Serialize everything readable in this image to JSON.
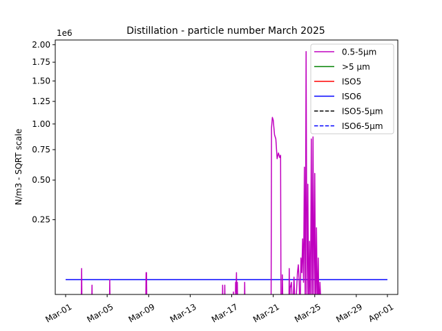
{
  "chart_data": {
    "type": "line",
    "title": "Distillation - particle number March 2025",
    "ylabel": "N/m3 - SQRT scale",
    "xlabel": "",
    "y_offset_text": "1e6",
    "y_scale": "sqrt",
    "ylim": [
      0.012,
      2.07
    ],
    "y_ticks": [
      0.25,
      0.5,
      0.75,
      1.0,
      1.25,
      1.5,
      1.75,
      2.0
    ],
    "y_tick_labels": [
      "0.25",
      "0.50",
      "0.75",
      "1.00",
      "1.25",
      "1.50",
      "1.75",
      "2.00"
    ],
    "xlim": [
      "2025-02-28",
      "2025-04-02"
    ],
    "x_ticks": [
      "2025-03-01",
      "2025-03-05",
      "2025-03-09",
      "2025-03-13",
      "2025-03-17",
      "2025-03-21",
      "2025-03-25",
      "2025-03-29",
      "2025-04-01"
    ],
    "x_tick_labels": [
      "Mar-01",
      "Mar-05",
      "Mar-09",
      "Mar-13",
      "Mar-17",
      "Mar-21",
      "Mar-25",
      "Mar-29",
      "Apr-01"
    ],
    "legend_position": "upper right",
    "legend": [
      {
        "label": "0.5-5µm",
        "color": "#bf00bf",
        "dash": "solid"
      },
      {
        "label": ">5 µm",
        "color": "#008000",
        "dash": "solid"
      },
      {
        "label": "ISO5",
        "color": "#ff0000",
        "dash": "solid"
      },
      {
        "label": "ISO6",
        "color": "#0000ff",
        "dash": "solid"
      },
      {
        "label": "ISO5-5µm",
        "color": "#000000",
        "dash": "dashed"
      },
      {
        "label": "ISO6-5µm",
        "color": "#0000ff",
        "dash": "dashed"
      }
    ],
    "series": [
      {
        "name": "ISO6",
        "color": "#0000ff",
        "dash": "solid",
        "x": [
          "2025-03-01",
          "2025-04-01"
        ],
        "y": [
          0.035,
          0.035
        ]
      },
      {
        "name": "0.5-5µm",
        "color": "#bf00bf",
        "dash": "solid",
        "x": [
          "2025-03-02 12:00",
          "2025-03-02 13:00",
          "2025-03-02 14:00",
          "2025-03-02 15:00",
          "2025-03-02 16:00",
          "2025-03-02 17:00",
          "2025-03-02 18:00",
          "2025-03-02 19:00",
          "2025-03-02 20:00",
          "2025-03-02 21:00",
          "2025-03-03 12:00",
          "2025-03-03 13:00",
          "2025-03-03 14:00",
          "2025-03-03 15:00",
          "2025-03-04 02:00",
          "2025-03-04 03:00",
          "2025-03-04 04:00",
          "2025-03-05 00:00",
          "2025-03-05 01:00",
          "2025-03-05 02:00",
          "2025-03-05 05:00",
          "2025-03-05 06:00",
          "2025-03-05 07:00",
          "2025-03-05 08:00",
          "2025-03-06 13:00",
          "2025-03-06 14:00",
          "2025-03-06 15:00",
          "2025-03-08 17:00",
          "2025-03-08 18:00",
          "2025-03-08 19:00",
          "2025-03-08 20:00",
          "2025-03-08 21:00",
          "2025-03-16 02:00",
          "2025-03-16 03:00",
          "2025-03-16 04:00",
          "2025-03-16 07:00",
          "2025-03-16 08:00",
          "2025-03-16 09:00",
          "2025-03-17 03:00",
          "2025-03-17 04:00",
          "2025-03-17 05:00",
          "2025-03-17 08:00",
          "2025-03-17 09:00",
          "2025-03-17 10:00",
          "2025-03-17 11:00",
          "2025-03-17 12:00",
          "2025-03-17 13:00",
          "2025-03-17 14:00",
          "2025-03-18 05:00",
          "2025-03-18 06:00",
          "2025-03-18 07:00",
          "2025-03-20 19:00",
          "2025-03-20 20:00",
          "2025-03-20 22:00",
          "2025-03-21 00:00",
          "2025-03-21 03:00",
          "2025-03-21 06:00",
          "2025-03-21 09:00",
          "2025-03-21 12:00",
          "2025-03-21 15:00",
          "2025-03-21 17:00",
          "2025-03-21 18:00",
          "2025-03-21 20:00",
          "2025-03-21 21:00",
          "2025-03-21 22:00",
          "2025-03-21 23:00",
          "2025-03-22 12:00",
          "2025-03-22 13:00",
          "2025-03-22 14:00",
          "2025-03-22 15:00",
          "2025-03-22 18:00",
          "2025-03-22 21:00",
          "2025-03-23 00:00",
          "2025-03-23 03:00",
          "2025-03-23 08:00",
          "2025-03-23 10:00",
          "2025-03-23 12:00",
          "2025-03-23 14:00",
          "2025-03-23 16:00",
          "2025-03-23 18:00",
          "2025-03-23 20:00",
          "2025-03-23 22:00",
          "2025-03-24 00:00",
          "2025-03-24 02:00",
          "2025-03-24 04:00",
          "2025-03-24 06:00",
          "2025-03-24 08:00",
          "2025-03-24 10:00",
          "2025-03-24 12:00",
          "2025-03-24 14:00",
          "2025-03-24 16:00",
          "2025-03-24 18:00",
          "2025-03-24 20:00",
          "2025-03-24 22:00",
          "2025-03-25 00:00",
          "2025-03-25 02:00",
          "2025-03-25 04:00",
          "2025-03-25 06:00",
          "2025-03-25 08:00",
          "2025-03-25 10:00",
          "2025-03-25 12:00",
          "2025-03-25 14:00",
          "2025-03-25 16:00",
          "2025-03-25 18:00",
          "2025-03-25 20:00",
          "2025-03-25 22:00",
          "2025-03-26 00:00",
          "2025-03-26 02:00",
          "2025-03-26 04:00",
          "2025-03-26 06:00",
          "2025-03-26 08:00",
          "2025-03-26 10:00",
          "2025-03-26 12:00"
        ],
        "y": [
          0.0,
          0.06,
          0.0,
          0.0,
          0.0,
          0.0,
          0.0,
          0.01,
          0.0,
          0.0,
          0.0,
          0.025,
          0.0,
          0.0,
          0.0,
          0.005,
          0.0,
          0.0,
          0.01,
          0.0,
          0.0,
          0.035,
          0.0,
          0.0,
          0.0,
          0.008,
          0.0,
          0.0,
          0.05,
          0.05,
          0.0,
          0.0,
          0.0,
          0.025,
          0.0,
          0.0,
          0.025,
          0.0,
          0.0,
          0.015,
          0.0,
          0.0,
          0.03,
          0.015,
          0.05,
          0.0,
          0.03,
          0.0,
          0.0,
          0.03,
          0.0,
          0.0,
          0.96,
          1.07,
          1.04,
          0.89,
          0.85,
          0.67,
          0.72,
          0.68,
          0.7,
          0.0,
          0.0,
          0.045,
          0.01,
          0.0,
          0.0,
          0.06,
          0.0,
          0.02,
          0.03,
          0.0,
          0.04,
          0.0,
          0.05,
          0.07,
          0.03,
          0.0,
          0.09,
          0.05,
          0.16,
          0.03,
          0.6,
          0.0,
          1.9,
          0.0,
          0.47,
          0.0,
          0.15,
          0.0,
          0.85,
          0.0,
          0.87,
          0.0,
          0.55,
          0.0,
          0.21,
          0.0,
          0.09,
          0.0,
          0.03,
          0.005,
          0.0,
          0.0,
          0.0,
          0.0,
          0.0,
          0.0,
          0.0,
          0.0,
          0.0,
          0.0,
          0.0
        ]
      }
    ]
  }
}
